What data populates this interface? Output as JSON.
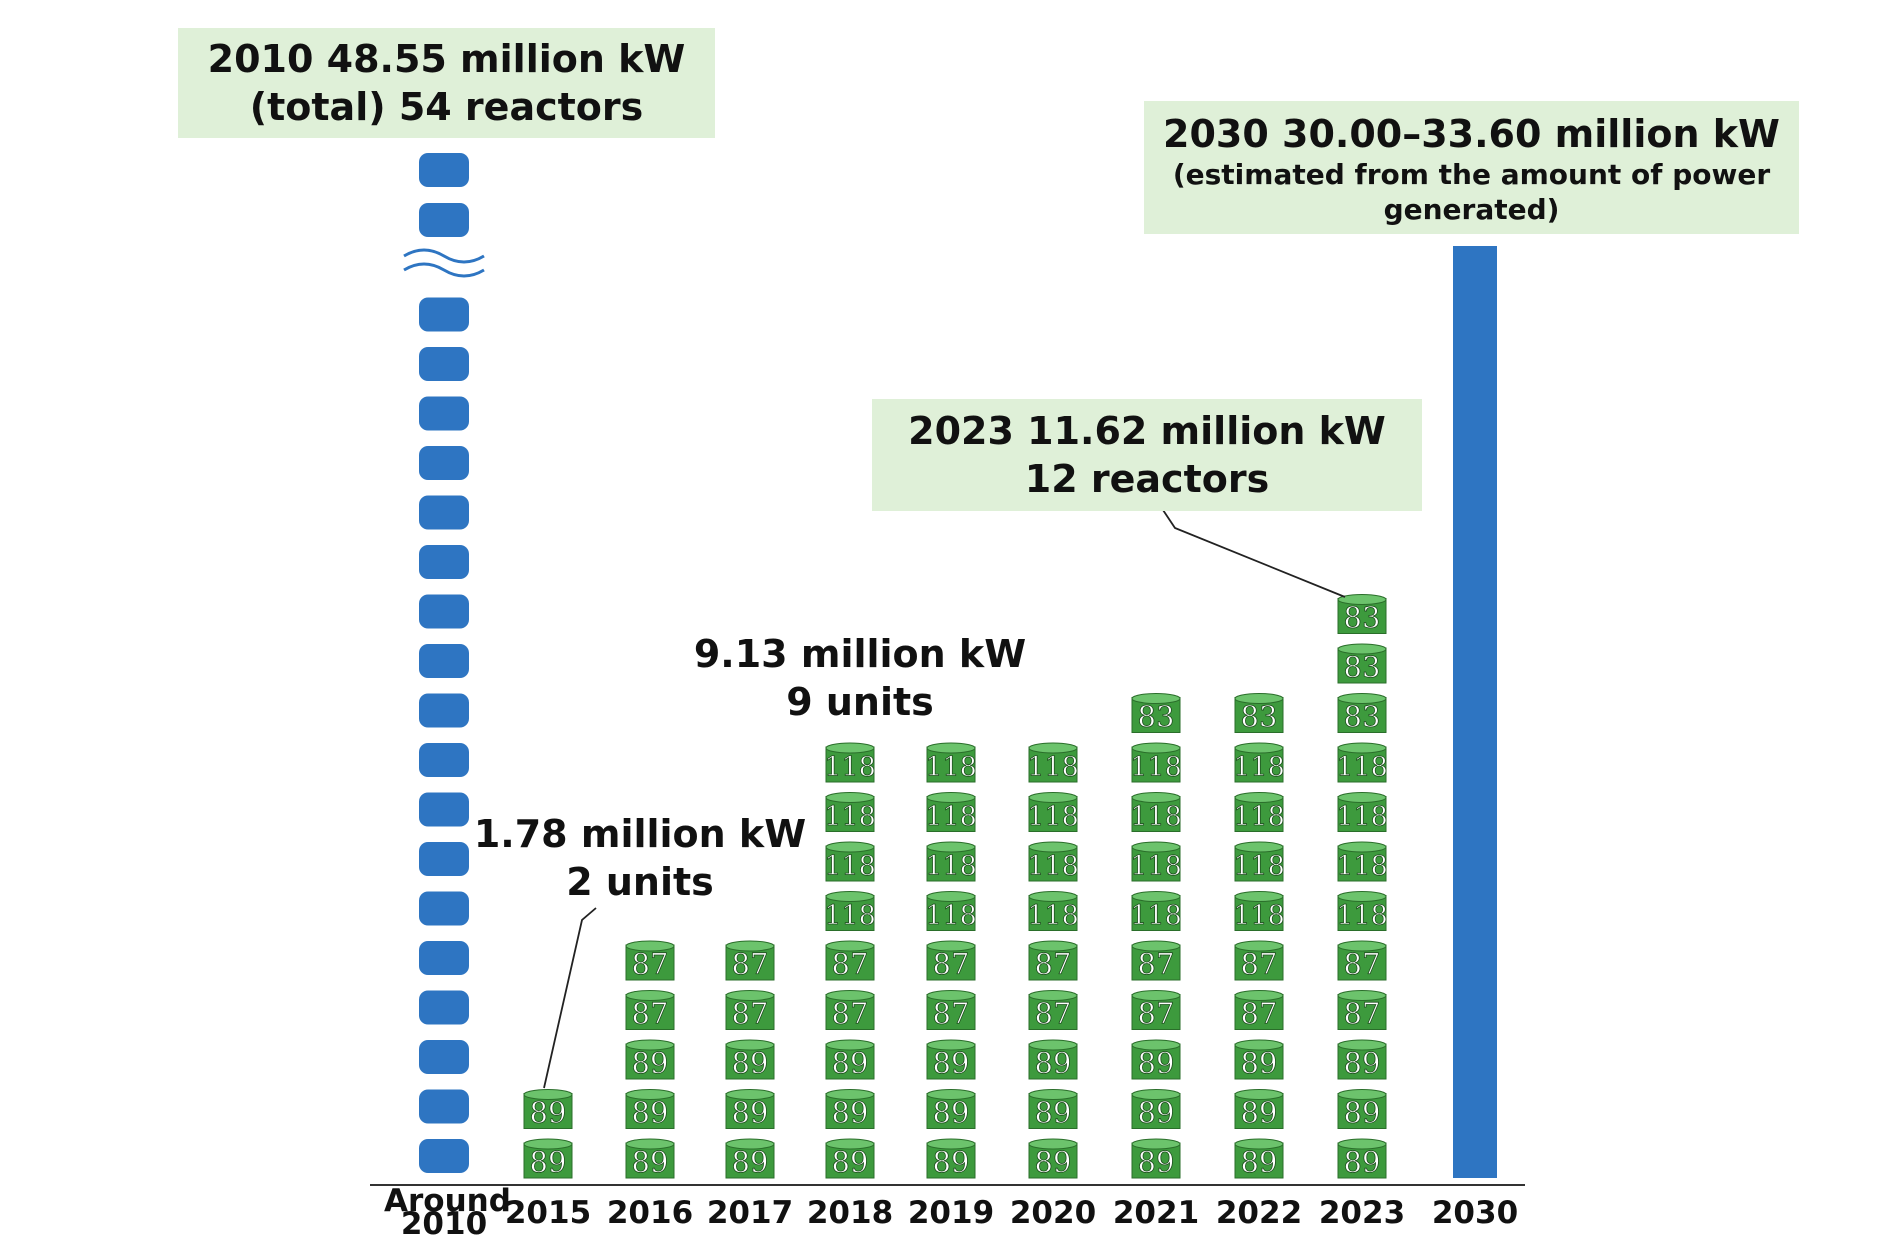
{
  "chart_data": {
    "type": "bar",
    "title": "",
    "xlabel": "",
    "ylabel": "",
    "categories": [
      "Around 2010",
      "2015",
      "2016",
      "2017",
      "2018",
      "2019",
      "2020",
      "2021",
      "2022",
      "2023",
      "2030"
    ],
    "category_lines": [
      [
        "Around",
        "2010"
      ],
      [
        "2015"
      ],
      [
        "2016"
      ],
      [
        "2017"
      ],
      [
        "2018"
      ],
      [
        "2019"
      ],
      [
        "2020"
      ],
      [
        "2021"
      ],
      [
        "2022"
      ],
      [
        "2023"
      ],
      [
        "2030"
      ]
    ],
    "reactor_stacks": [
      [],
      [
        "89",
        "89"
      ],
      [
        "89",
        "89",
        "89",
        "87",
        "87"
      ],
      [
        "89",
        "89",
        "89",
        "87",
        "87"
      ],
      [
        "89",
        "89",
        "89",
        "87",
        "87",
        "118",
        "118",
        "118",
        "118"
      ],
      [
        "89",
        "89",
        "89",
        "87",
        "87",
        "118",
        "118",
        "118",
        "118"
      ],
      [
        "89",
        "89",
        "89",
        "87",
        "87",
        "118",
        "118",
        "118",
        "118"
      ],
      [
        "89",
        "89",
        "89",
        "87",
        "87",
        "118",
        "118",
        "118",
        "118",
        "83"
      ],
      [
        "89",
        "89",
        "89",
        "87",
        "87",
        "118",
        "118",
        "118",
        "118",
        "83"
      ],
      [
        "89",
        "89",
        "89",
        "87",
        "87",
        "118",
        "118",
        "118",
        "118",
        "83",
        "83",
        "83"
      ],
      []
    ],
    "reactor_counts": [
      54,
      2,
      5,
      5,
      9,
      9,
      9,
      10,
      10,
      12,
      null
    ],
    "capacity_million_kw": [
      48.55,
      1.78,
      null,
      null,
      9.13,
      null,
      null,
      null,
      null,
      11.62,
      [
        30.0,
        33.6
      ]
    ],
    "axis_break_on_2010_stack": true,
    "colors": {
      "reactor_2010": "#2e75c2",
      "reactor_recent": "#3d9a3d",
      "reactor_recent_top": "#6cc36c",
      "bar_2030": "#2e75c2",
      "callout_bg": "#dff0d8",
      "axis": "#333333"
    }
  },
  "callouts": {
    "c2010": {
      "line1": "2010 48.55 million kW",
      "line2": "(total) 54 reactors"
    },
    "c2030": {
      "line1": "2030 30.00–33.60 million kW",
      "line2": "(estimated from the amount of power",
      "line3": "generated)"
    },
    "c2023": {
      "line1": "2023 11.62 million kW",
      "line2": "12 reactors"
    }
  },
  "labels": {
    "l2018": {
      "line1": "9.13 million kW",
      "line2": "9 units"
    },
    "l2015": {
      "line1": "1.78 million kW",
      "line2": "2 units"
    }
  }
}
